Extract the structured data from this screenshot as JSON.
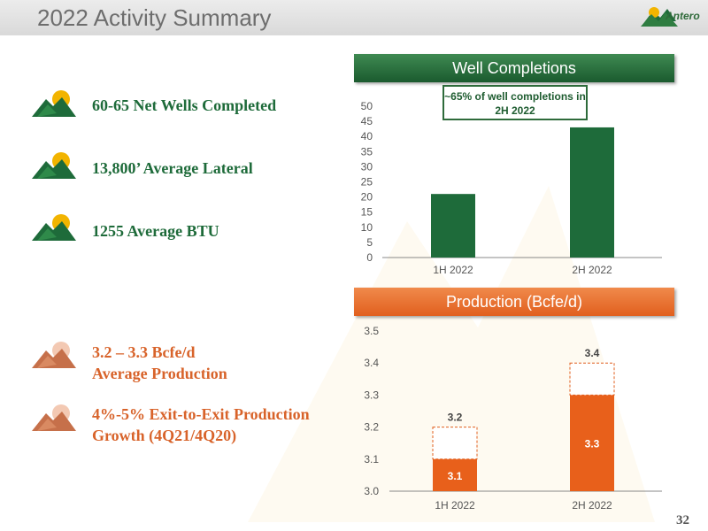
{
  "header": {
    "title": "2022 Activity Summary",
    "logo_text": "Antero",
    "page_number": "32"
  },
  "bullets_green": [
    {
      "text": "60-65 Net Wells Completed"
    },
    {
      "text": "13,800’ Average Lateral"
    },
    {
      "text": "1255 Average BTU"
    }
  ],
  "bullets_orange": [
    {
      "line1": "3.2 – 3.3 Bcfe/d",
      "line2": "Average Production"
    },
    {
      "line1": "4%-5% Exit-to-Exit Production",
      "line2": "Growth (4Q21/4Q20)"
    }
  ],
  "colors": {
    "green": "#1e6b3a",
    "orange": "#e8601b",
    "orange_text": "#d8632a"
  },
  "chart_data": [
    {
      "type": "bar",
      "title": "Well Completions",
      "annotation": "~65% of well completions in 2H 2022",
      "categories": [
        "1H 2022",
        "2H 2022"
      ],
      "values": [
        21,
        43
      ],
      "ylim": [
        0,
        50
      ],
      "yticks": [
        "0",
        "5",
        "10",
        "15",
        "20",
        "25",
        "30",
        "35",
        "40",
        "45",
        "50"
      ],
      "grid": false
    },
    {
      "type": "bar",
      "title": "Production (Bcfe/d)",
      "categories": [
        "1H 2022",
        "2H 2022"
      ],
      "values": [
        3.1,
        3.3
      ],
      "value_labels": [
        "3.1",
        "3.3"
      ],
      "range_high": [
        3.2,
        3.4
      ],
      "range_labels": [
        "3.2",
        "3.4"
      ],
      "ylim": [
        3.0,
        3.5
      ],
      "yticks": [
        "3.0",
        "3.1",
        "3.2",
        "3.3",
        "3.4",
        "3.5"
      ],
      "grid": false
    }
  ]
}
